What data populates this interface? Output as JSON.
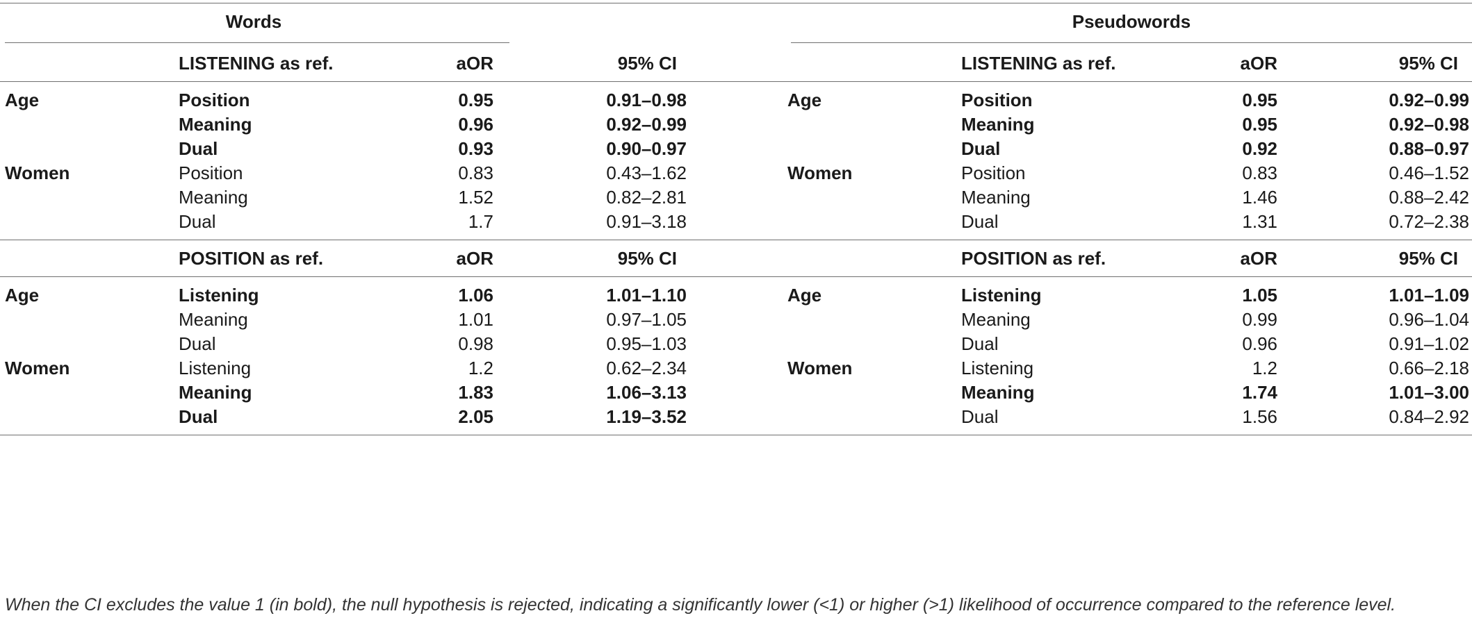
{
  "groups": {
    "words": "Words",
    "pseudowords": "Pseudowords"
  },
  "sections": [
    {
      "ref_label": "LISTENING as ref.",
      "aor_label": "aOR",
      "ci_label": "95% CI",
      "rows": [
        {
          "var": "Age",
          "level": "Position",
          "w_aor": "0.95",
          "w_ci": "0.91–0.98",
          "p_aor": "0.95",
          "p_ci": "0.92–0.99"
        },
        {
          "var": "",
          "level": "Meaning",
          "w_aor": "0.96",
          "w_ci": "0.92–0.99",
          "p_aor": "0.95",
          "p_ci": "0.92–0.98"
        },
        {
          "var": "",
          "level": "Dual",
          "w_aor": "0.93",
          "w_ci": "0.90–0.97",
          "p_aor": "0.92",
          "p_ci": "0.88–0.97"
        },
        {
          "var": "Women",
          "level": "Position",
          "w_aor": "0.83",
          "w_ci": "0.43–1.62",
          "p_aor": "0.83",
          "p_ci": "0.46–1.52"
        },
        {
          "var": "",
          "level": "Meaning",
          "w_aor": "1.52",
          "w_ci": "0.82–2.81",
          "p_aor": "1.46",
          "p_ci": "0.88–2.42"
        },
        {
          "var": "",
          "level": "Dual",
          "w_aor": "1.7",
          "w_ci": "0.91–3.18",
          "p_aor": "1.31",
          "p_ci": "0.72–2.38"
        }
      ]
    },
    {
      "ref_label": "POSITION as ref.",
      "aor_label": "aOR",
      "ci_label": "95% CI",
      "rows": [
        {
          "var": "Age",
          "level": "Listening",
          "w_aor": "1.06",
          "w_ci": "1.01–1.10",
          "p_aor": "1.05",
          "p_ci": "1.01–1.09"
        },
        {
          "var": "",
          "level": "Meaning",
          "w_aor": "1.01",
          "w_ci": "0.97–1.05",
          "p_aor": "0.99",
          "p_ci": "0.96–1.04"
        },
        {
          "var": "",
          "level": "Dual",
          "w_aor": "0.98",
          "w_ci": "0.95–1.03",
          "p_aor": "0.96",
          "p_ci": "0.91–1.02"
        },
        {
          "var": "Women",
          "level": "Listening",
          "w_aor": "1.2",
          "w_ci": "0.62–2.34",
          "p_aor": "1.2",
          "p_ci": "0.66–2.18"
        },
        {
          "var": "",
          "level": "Meaning",
          "w_aor": "1.83",
          "w_ci": "1.06–3.13",
          "p_aor": "1.74",
          "p_ci": "1.01–3.00"
        },
        {
          "var": "",
          "level": "Dual",
          "w_aor": "2.05",
          "w_ci": "1.19–3.52",
          "p_aor": "1.56",
          "p_ci": "0.84–2.92"
        }
      ]
    }
  ],
  "footnote": "When the CI excludes the value 1 (in bold), the null hypothesis is rejected, indicating a significantly lower (<1) or higher (>1) likelihood of occurrence compared to the reference level."
}
